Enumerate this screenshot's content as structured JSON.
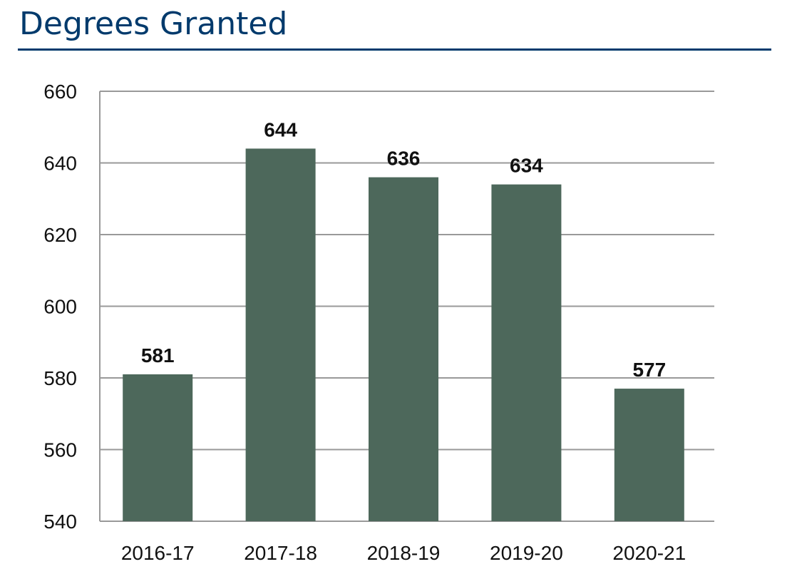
{
  "chart_data": {
    "type": "bar",
    "title": "Degrees Granted",
    "categories": [
      "2016-17",
      "2017-18",
      "2018-19",
      "2019-20",
      "2020-21"
    ],
    "values": [
      581,
      644,
      636,
      634,
      577
    ],
    "data_labels": [
      "581",
      "644",
      "636",
      "634",
      "577"
    ],
    "xlabel": "",
    "ylabel": "",
    "ylim": [
      540,
      660
    ],
    "yticks": [
      540,
      560,
      580,
      600,
      620,
      640,
      660
    ],
    "grid": true,
    "legend": "none",
    "colors": {
      "bar": "#4d685b",
      "title": "#003a6c",
      "grid": "#999999"
    }
  }
}
